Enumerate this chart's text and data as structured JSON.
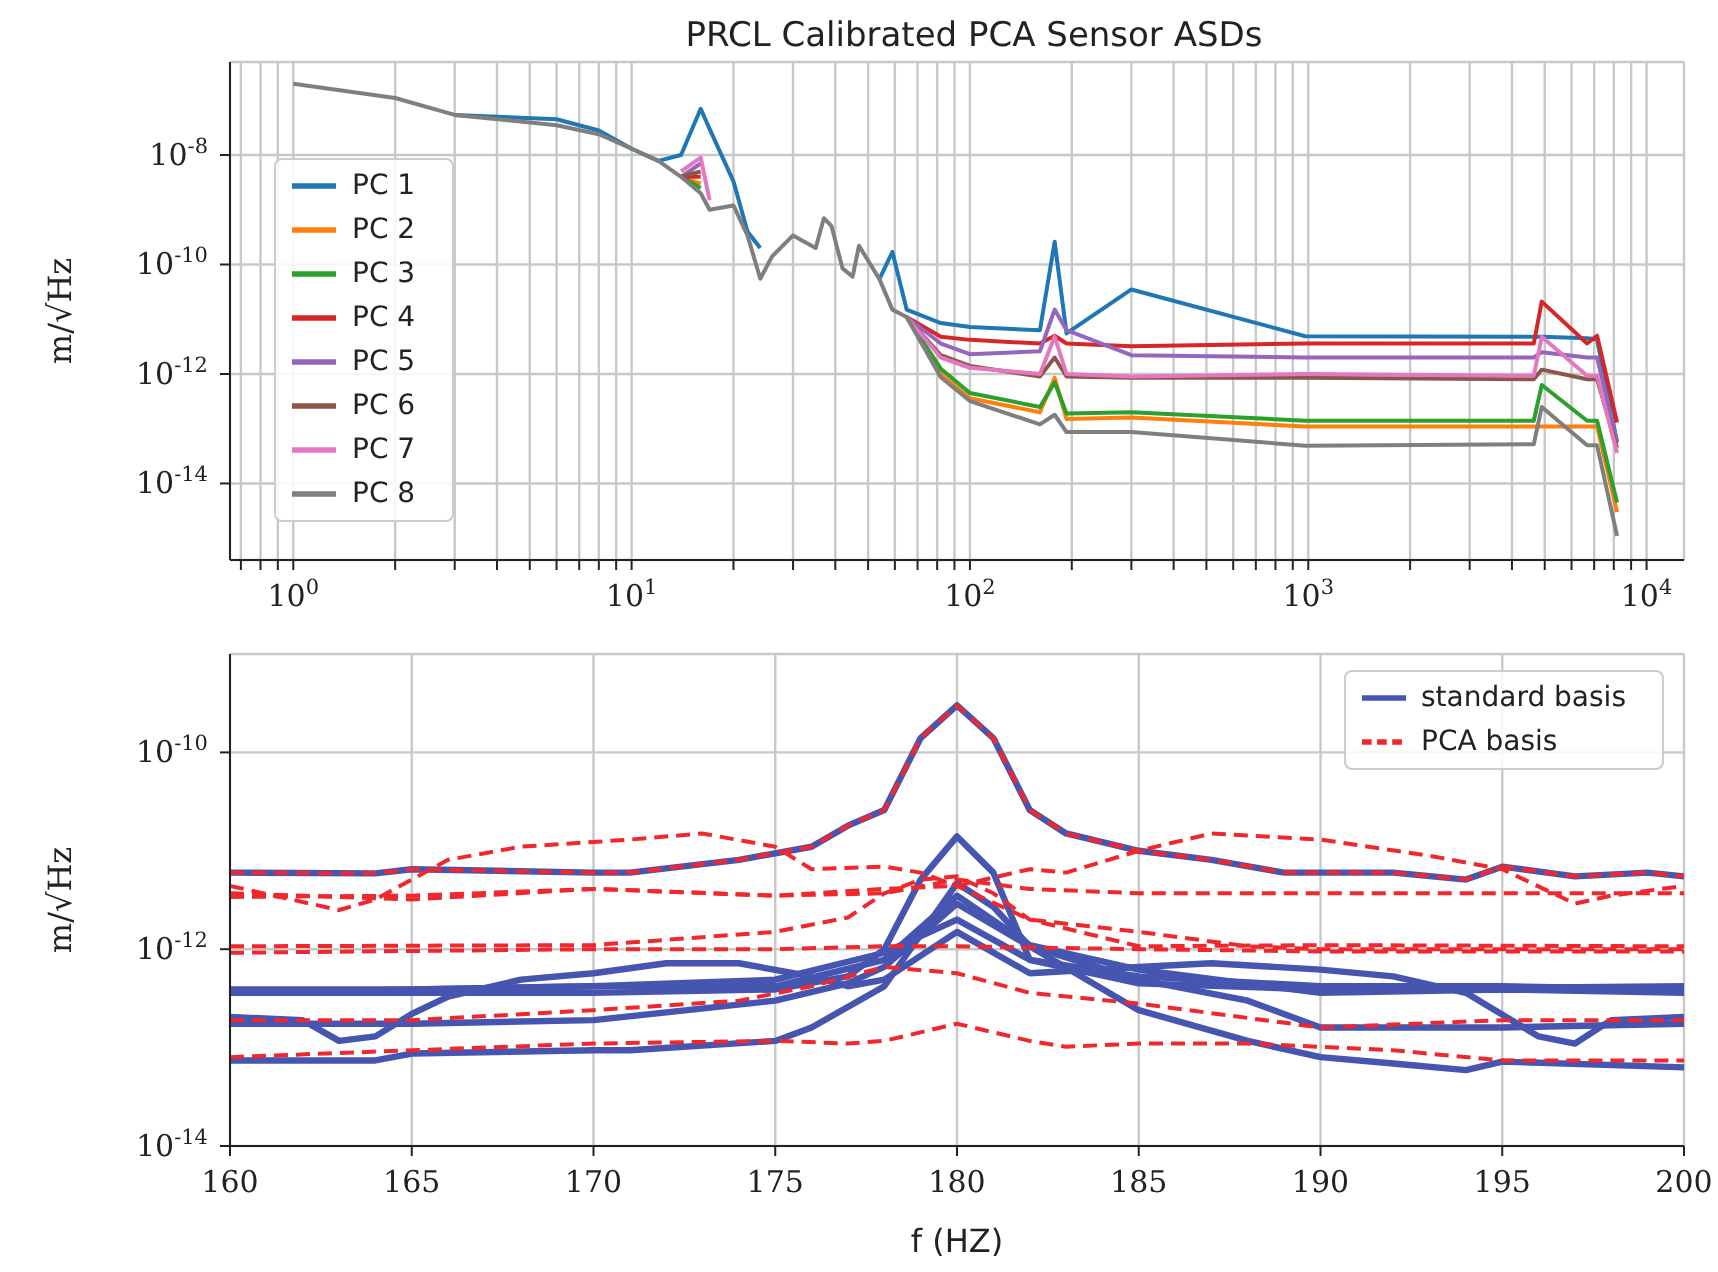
{
  "chart_data": [
    {
      "type": "line",
      "title": "PRCL Calibrated PCA Sensor ASDs",
      "ylabel": "m/√Hz",
      "log": "xy",
      "grid": true,
      "legend": "center left",
      "xlim": [
        0.65,
        12900
      ],
      "ylim": [
        4e-16,
        5e-07
      ],
      "xticks": [
        {
          "value": 0.7,
          "label": null
        },
        {
          "value": 0.8,
          "label": null
        },
        {
          "value": 0.9,
          "label": null
        },
        {
          "value": 1,
          "label": "10$^{0}$"
        },
        {
          "value": 2,
          "label": null
        },
        {
          "value": 3,
          "label": null
        },
        {
          "value": 4,
          "label": null
        },
        {
          "value": 5,
          "label": null
        },
        {
          "value": 6,
          "label": null
        },
        {
          "value": 7,
          "label": null
        },
        {
          "value": 8,
          "label": null
        },
        {
          "value": 9,
          "label": null
        },
        {
          "value": 10,
          "label": "10$^{1}$"
        },
        {
          "value": 20,
          "label": null
        },
        {
          "value": 30,
          "label": null
        },
        {
          "value": 40,
          "label": null
        },
        {
          "value": 50,
          "label": null
        },
        {
          "value": 60,
          "label": null
        },
        {
          "value": 70,
          "label": null
        },
        {
          "value": 80,
          "label": null
        },
        {
          "value": 90,
          "label": null
        },
        {
          "value": 100,
          "label": "10$^{2}$"
        },
        {
          "value": 200,
          "label": null
        },
        {
          "value": 300,
          "label": null
        },
        {
          "value": 400,
          "label": null
        },
        {
          "value": 500,
          "label": null
        },
        {
          "value": 600,
          "label": null
        },
        {
          "value": 700,
          "label": null
        },
        {
          "value": 800,
          "label": null
        },
        {
          "value": 900,
          "label": null
        },
        {
          "value": 1000,
          "label": "10$^{3}$"
        },
        {
          "value": 2000,
          "label": null
        },
        {
          "value": 3000,
          "label": null
        },
        {
          "value": 4000,
          "label": null
        },
        {
          "value": 5000,
          "label": null
        },
        {
          "value": 6000,
          "label": null
        },
        {
          "value": 7000,
          "label": null
        },
        {
          "value": 8000,
          "label": null
        },
        {
          "value": 9000,
          "label": null
        },
        {
          "value": 10000,
          "label": "10$^{4}$"
        }
      ],
      "yticks": [
        {
          "value": 1e-14,
          "label": "10$^{-14}$"
        },
        {
          "value": 1e-12,
          "label": "10$^{-12}$"
        },
        {
          "value": 1e-10,
          "label": "10$^{-10}$"
        },
        {
          "value": 1e-08,
          "label": "10$^{-8}$"
        }
      ],
      "x": [
        1,
        2,
        3,
        6,
        8,
        10,
        12,
        14,
        16,
        17,
        20,
        22,
        24,
        26,
        30,
        35,
        37,
        39,
        42,
        45,
        47,
        54,
        59,
        65,
        82,
        100,
        161,
        178,
        193,
        300,
        980,
        4640,
        4900,
        6670,
        7140,
        8180
      ],
      "series": [
        {
          "name": "PC 1",
          "color": "#1f77b4",
          "values": [
            null,
            null,
            5.4e-08,
            4.5e-08,
            2.8e-08,
            1.3e-08,
            7.8e-09,
            1e-08,
            7e-08,
            3e-08,
            3.3e-09,
            4e-10,
            2e-10,
            null,
            null,
            null,
            null,
            null,
            null,
            null,
            null,
            5.4e-11,
            1.7e-10,
            1.5e-11,
            8.5e-12,
            7.2e-12,
            6.3e-12,
            2.6e-10,
            5.5e-12,
            3.5e-11,
            4.9e-12,
            4.8e-12,
            4.8e-12,
            4.5e-12,
            4.3e-12,
            5.6e-14
          ]
        },
        {
          "name": "PC 2",
          "color": "#ff7f0e",
          "values": [
            null,
            null,
            null,
            null,
            null,
            null,
            null,
            4e-09,
            3e-09,
            null,
            null,
            null,
            null,
            null,
            null,
            null,
            null,
            null,
            null,
            null,
            null,
            null,
            null,
            1.1e-11,
            1e-12,
            3.6e-13,
            2e-13,
            8.5e-13,
            1.5e-13,
            1.6e-13,
            1.1e-13,
            1.1e-13,
            1.1e-13,
            1.1e-13,
            1.1e-13,
            3e-15
          ]
        },
        {
          "name": "PC 3",
          "color": "#2ca02c",
          "values": [
            null,
            null,
            null,
            null,
            null,
            null,
            null,
            4e-09,
            2.5e-09,
            null,
            null,
            null,
            null,
            null,
            null,
            null,
            null,
            null,
            null,
            null,
            null,
            null,
            null,
            1.1e-11,
            1.25e-12,
            4.5e-13,
            2.5e-13,
            7e-13,
            1.9e-13,
            2e-13,
            1.4e-13,
            1.4e-13,
            6.3e-13,
            1.4e-13,
            1.4e-13,
            4.5e-15
          ]
        },
        {
          "name": "PC 4",
          "color": "#d62728",
          "values": [
            null,
            null,
            null,
            null,
            null,
            null,
            null,
            4e-09,
            4e-09,
            null,
            null,
            null,
            null,
            null,
            null,
            null,
            null,
            null,
            null,
            null,
            null,
            null,
            null,
            1.1e-11,
            4.8e-12,
            4.2e-12,
            3.6e-12,
            5e-12,
            3.6e-12,
            3.2e-12,
            3.6e-12,
            3.6e-12,
            2.1e-11,
            3.6e-12,
            5e-12,
            1.3e-13
          ]
        },
        {
          "name": "PC 5",
          "color": "#9467bd",
          "values": [
            null,
            null,
            null,
            null,
            null,
            null,
            null,
            4e-09,
            7e-09,
            null,
            null,
            null,
            null,
            null,
            null,
            null,
            null,
            null,
            null,
            null,
            null,
            null,
            null,
            1.1e-11,
            3.6e-12,
            2.3e-12,
            2.6e-12,
            1.5e-11,
            6.3e-12,
            2.2e-12,
            2e-12,
            2e-12,
            2.5e-12,
            2e-12,
            2e-12,
            5.6e-14
          ]
        },
        {
          "name": "PC 6",
          "color": "#8c564b",
          "values": [
            null,
            null,
            null,
            null,
            null,
            null,
            null,
            4e-09,
            5e-09,
            null,
            null,
            null,
            null,
            null,
            null,
            null,
            null,
            null,
            null,
            null,
            null,
            null,
            null,
            1.1e-11,
            2.2e-12,
            1.4e-12,
            9e-13,
            2e-12,
            9e-13,
            8.5e-13,
            8.5e-13,
            8e-13,
            1.2e-12,
            8e-13,
            8e-13,
            4.5e-14
          ]
        },
        {
          "name": "PC 7",
          "color": "#e377c2",
          "values": [
            null,
            null,
            null,
            null,
            null,
            null,
            null,
            5e-09,
            9e-09,
            1.5e-09,
            null,
            null,
            null,
            null,
            null,
            null,
            null,
            null,
            null,
            null,
            null,
            null,
            null,
            1.1e-11,
            2e-12,
            1.3e-12,
            1e-12,
            4.8e-12,
            1e-12,
            9e-13,
            1e-12,
            9.3e-13,
            4.8e-12,
            9.3e-13,
            9.3e-13,
            3.6e-14
          ]
        },
        {
          "name": "PC 8",
          "color": "#7f7f7f",
          "values": [
            2e-07,
            1.1e-07,
            5.4e-08,
            3.5e-08,
            2.4e-08,
            1.3e-08,
            7.8e-09,
            4e-09,
            2e-09,
            1e-09,
            1.2e-09,
            3.4e-10,
            5.5e-11,
            1.4e-10,
            3.4e-10,
            2e-10,
            7e-10,
            5e-10,
            8.5e-11,
            6e-11,
            2.2e-10,
            5.4e-11,
            1.5e-11,
            1.1e-11,
            8.7e-13,
            3.2e-13,
            1.2e-13,
            1.8e-13,
            8.7e-14,
            8.7e-14,
            4.9e-14,
            5.2e-14,
            2.5e-13,
            5e-14,
            5e-14,
            1.1e-15
          ]
        }
      ]
    },
    {
      "type": "line",
      "xlabel": "f (HZ)",
      "ylabel": "m/√Hz",
      "log": "y",
      "grid": true,
      "legend": "top right",
      "xlim": [
        160,
        200
      ],
      "ylim": [
        1e-14,
        1e-09
      ],
      "xticks": [
        160,
        165,
        170,
        175,
        180,
        185,
        190,
        195,
        200
      ],
      "yticks": [
        {
          "value": 1e-14,
          "label": "10$^{-14}$"
        },
        {
          "value": 1e-12,
          "label": "10$^{-12}$"
        },
        {
          "value": 1e-10,
          "label": "10$^{-10}$"
        }
      ],
      "series": [
        {
          "name": "standard basis",
          "color": "#4656b0",
          "line_style": "solid",
          "x": [
            160,
            164,
            165,
            170,
            171,
            174,
            176,
            177,
            178,
            179,
            180,
            181,
            182,
            183,
            185,
            187,
            189,
            192,
            194,
            195,
            197,
            199,
            200
          ],
          "values": [
            6e-12,
            5.9e-12,
            6.5e-12,
            6e-12,
            6e-12,
            8.1e-12,
            1.1e-11,
            1.8e-11,
            2.6e-11,
            1.4e-10,
            3e-10,
            1.4e-10,
            2.6e-11,
            1.5e-11,
            1e-11,
            8.1e-12,
            6e-12,
            6e-12,
            5.1e-12,
            6.9e-12,
            5.5e-12,
            6e-12,
            5.5e-12
          ]
        },
        {
          "color": "#4656b0",
          "line_style": "solid",
          "x": [
            160,
            165,
            170,
            175,
            177,
            178,
            179,
            180,
            181,
            182,
            185,
            190,
            195,
            200
          ],
          "values": [
            3.6e-13,
            3.6e-13,
            3.6e-13,
            3.9e-13,
            5.3e-13,
            1e-12,
            5.1e-12,
            1.4e-11,
            6e-12,
            7.8e-13,
            5.3e-13,
            4.2e-13,
            4.2e-13,
            3.9e-13
          ]
        },
        {
          "color": "#4656b0",
          "line_style": "solid",
          "x": [
            160,
            162,
            163,
            164,
            165,
            166,
            168,
            170,
            172,
            174,
            176,
            177,
            178,
            180,
            182,
            185,
            187,
            190,
            192,
            194,
            196,
            197,
            198,
            200
          ],
          "values": [
            2.05e-13,
            1.9e-13,
            1.17e-13,
            1.3e-13,
            2.2e-13,
            3.3e-13,
            4.9e-13,
            5.7e-13,
            7.2e-13,
            7.2e-13,
            5.3e-13,
            4.2e-13,
            4.9e-13,
            1.5e-12,
            5.7e-13,
            6.6e-13,
            7.2e-13,
            6.2e-13,
            5.3e-13,
            3.6e-13,
            1.3e-13,
            1.1e-13,
            1.9e-13,
            2.05e-13
          ]
        },
        {
          "color": "#4656b0",
          "line_style": "solid",
          "x": [
            160,
            165,
            170,
            175,
            178,
            180,
            182,
            185,
            190,
            195,
            200
          ],
          "values": [
            3.9e-13,
            3.9e-13,
            4.2e-13,
            4.2e-13,
            7.8e-13,
            3.5e-12,
            1.1e-12,
            6.2e-13,
            3.6e-13,
            3.9e-13,
            3.6e-13
          ]
        },
        {
          "color": "#4656b0",
          "line_style": "solid",
          "x": [
            160,
            165,
            170,
            175,
            177,
            178,
            180,
            182,
            185,
            188,
            190,
            195,
            200
          ],
          "values": [
            1.75e-13,
            1.75e-13,
            1.9e-13,
            3e-13,
            4.5e-13,
            6.6e-13,
            2.9e-12,
            1.07e-12,
            4.9e-13,
            3e-13,
            1.6e-13,
            1.6e-13,
            1.75e-13
          ]
        },
        {
          "color": "#4656b0",
          "line_style": "solid",
          "x": [
            160,
            164,
            165,
            170,
            171,
            175,
            176,
            178,
            180,
            181,
            182,
            185,
            188,
            190,
            192,
            194,
            195,
            200
          ],
          "values": [
            7.4e-14,
            7.4e-14,
            8.7e-14,
            9.4e-14,
            9.4e-14,
            1.17e-13,
            1.6e-13,
            4.2e-13,
            4.7e-12,
            2.7e-12,
            1.07e-12,
            2.4e-13,
            1.17e-13,
            8e-14,
            6.9e-14,
            5.9e-14,
            7.2e-14,
            6.3e-14
          ]
        },
        {
          "color": "#4656b0",
          "line_style": "solid",
          "x": [
            160,
            170,
            175,
            178,
            180,
            182,
            185,
            190,
            200
          ],
          "values": [
            3.6e-13,
            4.2e-13,
            4.9e-13,
            9.2e-13,
            2e-12,
            7.8e-13,
            4.5e-13,
            3.9e-13,
            4.2e-13
          ]
        },
        {
          "name": "PCA basis",
          "color": "#f0282d",
          "line_style": "dashed",
          "x": [
            160,
            164,
            165,
            170,
            171,
            174,
            176,
            177,
            178,
            179,
            180,
            181,
            182,
            183,
            185,
            187,
            189,
            192,
            194,
            195,
            197,
            199,
            200
          ],
          "values": [
            6e-12,
            5.9e-12,
            6.5e-12,
            6e-12,
            6e-12,
            8.1e-12,
            1.1e-11,
            1.8e-11,
            2.6e-11,
            1.4e-10,
            3e-10,
            1.4e-10,
            2.6e-11,
            1.5e-11,
            1e-11,
            8.1e-12,
            6e-12,
            6e-12,
            5.1e-12,
            6.9e-12,
            5.5e-12,
            6e-12,
            5.5e-12
          ]
        },
        {
          "color": "#f0282d",
          "line_style": "dashed",
          "x": [
            160,
            163,
            164,
            165,
            166,
            168,
            171,
            173,
            175,
            176,
            178,
            179,
            180,
            182,
            185,
            188,
            190,
            200
          ],
          "values": [
            4.4e-12,
            2.5e-12,
            3.2e-12,
            5.1e-12,
            8.1e-12,
            1.1e-11,
            1.3e-11,
            1.5e-11,
            1.1e-11,
            6.5e-12,
            6.9e-12,
            6e-12,
            4.4e-12,
            2e-12,
            1.5e-12,
            1.07e-12,
            1e-12,
            1e-12
          ]
        },
        {
          "color": "#f0282d",
          "line_style": "dashed",
          "x": [
            160,
            165,
            170,
            175,
            178,
            180,
            182,
            183,
            185,
            187,
            190,
            193,
            195,
            197,
            198,
            200
          ],
          "values": [
            3.7e-12,
            3.2e-12,
            4.1e-12,
            3.5e-12,
            4.1e-12,
            4.4e-12,
            6.5e-12,
            6e-12,
            1e-11,
            1.5e-11,
            1.3e-11,
            8.9e-12,
            6.5e-12,
            2.9e-12,
            3.5e-12,
            4.4e-12
          ]
        },
        {
          "color": "#f0282d",
          "line_style": "dashed",
          "x": [
            160,
            165,
            170,
            175,
            178,
            180,
            182,
            185,
            190,
            195,
            200
          ],
          "values": [
            3.4e-12,
            3.5e-12,
            4.1e-12,
            3.5e-12,
            3.7e-12,
            5.1e-12,
            4.1e-12,
            3.7e-12,
            3.7e-12,
            3.7e-12,
            3.7e-12
          ]
        },
        {
          "color": "#f0282d",
          "line_style": "dashed",
          "x": [
            160,
            170,
            175,
            177,
            178,
            179,
            180,
            181,
            182,
            185,
            190,
            200
          ],
          "values": [
            1.07e-12,
            1.1e-12,
            1.5e-12,
            2.1e-12,
            3.7e-12,
            5.1e-12,
            5.5e-12,
            3.7e-12,
            2e-12,
            1.07e-12,
            1.1e-12,
            1.07e-12
          ]
        },
        {
          "color": "#f0282d",
          "line_style": "dashed",
          "x": [
            160,
            170,
            175,
            178,
            180,
            185,
            190,
            200
          ],
          "values": [
            9.2e-13,
            1e-12,
            1e-12,
            1.07e-12,
            1.07e-12,
            1e-12,
            9.5e-13,
            9.5e-13
          ]
        },
        {
          "color": "#f0282d",
          "line_style": "dashed",
          "x": [
            160,
            165,
            170,
            174,
            176,
            178,
            180,
            182,
            185,
            190,
            195,
            200
          ],
          "values": [
            1.9e-13,
            1.9e-13,
            2.4e-13,
            3e-13,
            4.2e-13,
            6.6e-13,
            5.7e-13,
            3.6e-13,
            2.8e-13,
            1.6e-13,
            1.9e-13,
            1.9e-13
          ]
        },
        {
          "color": "#f0282d",
          "line_style": "dashed",
          "x": [
            160,
            165,
            170,
            175,
            177,
            178,
            180,
            182,
            183,
            185,
            188,
            192,
            195,
            200
          ],
          "values": [
            8e-14,
            9.4e-14,
            1.1e-13,
            1.17e-13,
            1.1e-13,
            1.17e-13,
            1.75e-13,
            1.17e-13,
            1.02e-13,
            1.1e-13,
            1.1e-13,
            9.4e-14,
            7.4e-14,
            7.4e-14
          ]
        }
      ]
    }
  ]
}
